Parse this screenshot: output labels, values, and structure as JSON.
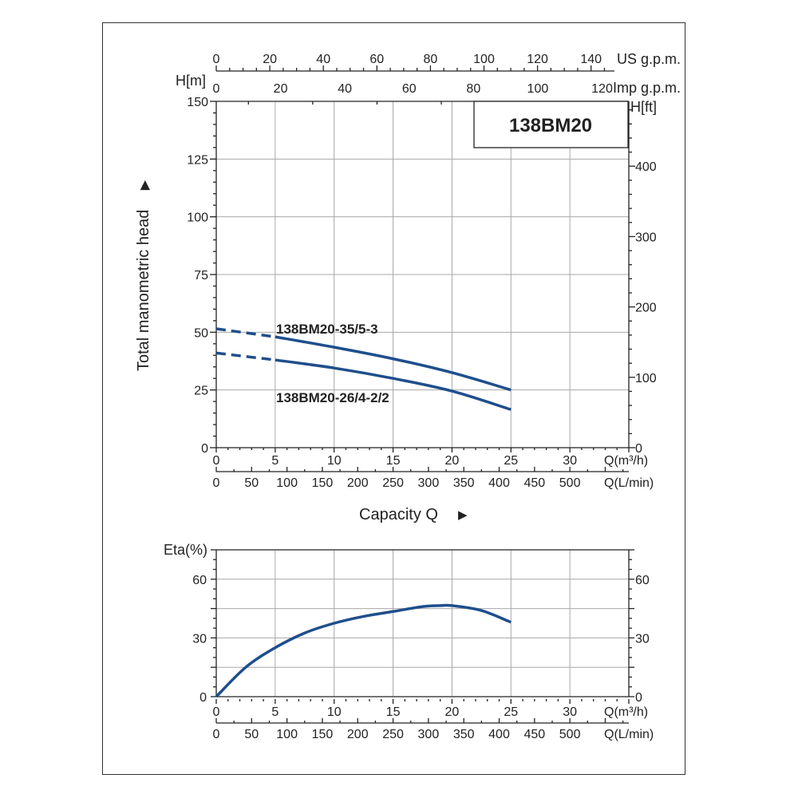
{
  "chart_data": [
    {
      "type": "line",
      "title": "138BM20",
      "ylabel": "Total manometric head",
      "xlabel": "Capacity Q",
      "ylabel_left_unit": "H[m]",
      "ylabel_right_unit": "H[ft]",
      "top_axis_1_label": "US g.p.m.",
      "top_axis_1_ticks": [
        "0",
        "20",
        "40",
        "60",
        "80",
        "100",
        "120",
        "140"
      ],
      "top_axis_2_label": "Imp g.p.m.",
      "top_axis_2_ticks": [
        "0",
        "20",
        "40",
        "60",
        "80",
        "100",
        "120"
      ],
      "x_unit_m3h": "Q(m³/h)",
      "x_unit_lmin": "Q(L/min)",
      "x_ticks_m3h": [
        "0",
        "5",
        "10",
        "15",
        "20",
        "25",
        "30"
      ],
      "x_ticks_lmin": [
        "0",
        "50",
        "100",
        "150",
        "200",
        "250",
        "300",
        "350",
        "400",
        "450",
        "500"
      ],
      "y_ticks_m": [
        "0",
        "25",
        "50",
        "75",
        "100",
        "125",
        "150"
      ],
      "y_ticks_ft": [
        "0",
        "100",
        "200",
        "300",
        "400"
      ],
      "xlim": [
        0,
        35
      ],
      "ylim": [
        0,
        150
      ],
      "series": [
        {
          "name": "138BM20-35/5-3",
          "x": [
            0,
            5,
            10,
            15,
            20,
            25
          ],
          "y": [
            51.5,
            48,
            43.5,
            38.5,
            32.5,
            25
          ],
          "dashed_until_x": 5
        },
        {
          "name": "138BM20-26/4-2/2",
          "x": [
            0,
            5,
            10,
            15,
            20,
            25
          ],
          "y": [
            41,
            38,
            34.5,
            30,
            24.5,
            16.5
          ],
          "dashed_until_x": 5
        }
      ],
      "colors": {
        "curve": "#1f4e8c",
        "box_border": "#222222"
      }
    },
    {
      "type": "line",
      "ylabel": "Eta(%)",
      "x_unit_m3h": "Q(m³/h)",
      "x_unit_lmin": "Q(L/min)",
      "x_ticks_m3h": [
        "0",
        "5",
        "10",
        "15",
        "20",
        "25",
        "30"
      ],
      "x_ticks_lmin": [
        "0",
        "50",
        "100",
        "150",
        "200",
        "250",
        "300",
        "350",
        "400",
        "450",
        "500"
      ],
      "y_ticks": [
        "0",
        "30",
        "60"
      ],
      "y_ticks_right": [
        "0",
        "30",
        "60"
      ],
      "xlim": [
        0,
        35
      ],
      "ylim": [
        0,
        75
      ],
      "series": [
        {
          "x": [
            0,
            2.5,
            5,
            7.5,
            10,
            12.5,
            15,
            17.5,
            19,
            20,
            22.5,
            25
          ],
          "y": [
            0,
            15,
            25,
            32.5,
            37.5,
            41,
            43.5,
            46,
            46.5,
            46.5,
            44,
            38
          ]
        }
      ],
      "colors": {
        "curve": "#1f4e8c"
      }
    }
  ]
}
